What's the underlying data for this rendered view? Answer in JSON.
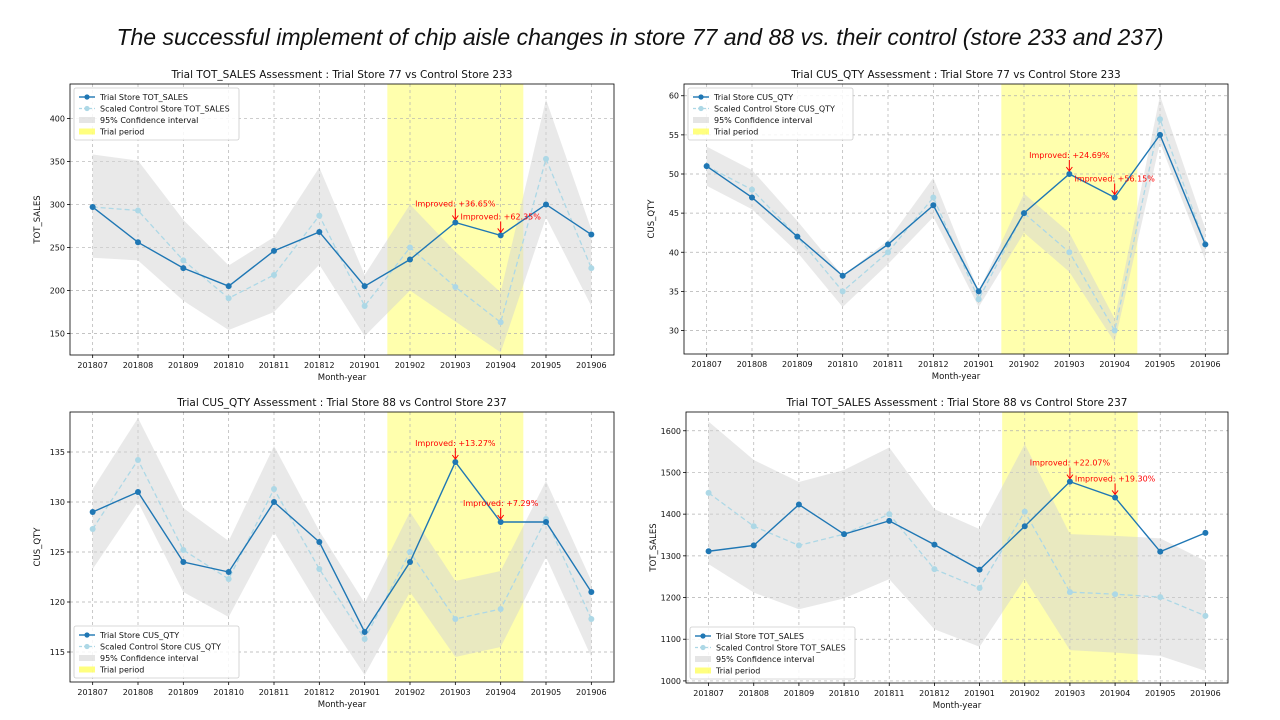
{
  "slide": {
    "title": "The successful implement of chip aisle changes in store 77 and 88 vs. their control (store 233 and 237)"
  },
  "colors": {
    "trial": "#1f77b4",
    "control": "#add8e6",
    "ci": "#d3d3d3",
    "trial_period": "#ffff00",
    "annotation": "#ff0000",
    "grid": "#b0b0b0"
  },
  "chart_data": [
    {
      "type": "line",
      "title": "Trial TOT_SALES Assessment : Trial Store 77 vs Control Store 233",
      "xlabel": "Month-year",
      "ylabel": "TOT_SALES",
      "x": [
        "201807",
        "201808",
        "201809",
        "201810",
        "201811",
        "201812",
        "201901",
        "201902",
        "201903",
        "201904",
        "201905",
        "201906"
      ],
      "ylim": [
        125,
        440
      ],
      "yticks": [
        150,
        200,
        250,
        300,
        350,
        400
      ],
      "grid": true,
      "legend_position": "top-left",
      "series": [
        {
          "name": "Trial Store TOT_SALES",
          "values": [
            297,
            256,
            226,
            205,
            246,
            268,
            205,
            236,
            279,
            264,
            300,
            265
          ]
        },
        {
          "name": "Scaled Control Store TOT_SALES",
          "values": [
            297,
            293,
            235,
            191,
            218,
            287,
            182,
            250,
            204,
            163,
            353,
            226
          ]
        }
      ],
      "ci": {
        "name": "95% Confidence interval",
        "lower": [
          238,
          235,
          188,
          154,
          175,
          230,
          147,
          200,
          164,
          128,
          285,
          182
        ],
        "upper": [
          358,
          351,
          282,
          229,
          262,
          343,
          218,
          300,
          245,
          198,
          422,
          271
        ]
      },
      "trial_period": {
        "name": "Trial period",
        "start": "201902",
        "end": "201904"
      },
      "annotations": [
        {
          "text": "Improved: +36.65%",
          "x": "201903",
          "y": 279
        },
        {
          "text": "Improved: +62.35%",
          "x": "201904",
          "y": 264
        }
      ]
    },
    {
      "type": "line",
      "title": "Trial CUS_QTY Assessment : Trial Store 77 vs Control Store 233",
      "xlabel": "Month-year",
      "ylabel": "CUS_QTY",
      "x": [
        "201807",
        "201808",
        "201809",
        "201810",
        "201811",
        "201812",
        "201901",
        "201902",
        "201903",
        "201904",
        "201905",
        "201906"
      ],
      "ylim": [
        27,
        61.5
      ],
      "yticks": [
        30,
        35,
        40,
        45,
        50,
        55,
        60
      ],
      "grid": true,
      "legend_position": "top-left",
      "series": [
        {
          "name": "Trial Store CUS_QTY",
          "values": [
            51,
            47,
            42,
            37,
            41,
            46,
            35,
            45,
            50,
            47,
            55,
            41
          ]
        },
        {
          "name": "Scaled Control Store CUS_QTY",
          "values": [
            51,
            48,
            42,
            35,
            40,
            47,
            34,
            45,
            40,
            30,
            57,
            41
          ]
        }
      ],
      "ci": {
        "name": "95% Confidence interval",
        "lower": [
          48.5,
          45.5,
          40,
          33,
          38.5,
          44.5,
          33,
          42.5,
          37.5,
          28.5,
          54,
          39
        ],
        "upper": [
          53.5,
          50.5,
          44,
          37,
          41.5,
          49.5,
          35,
          47.5,
          42.5,
          31.5,
          60,
          43
        ]
      },
      "trial_period": {
        "name": "Trial period",
        "start": "201902",
        "end": "201904"
      },
      "annotations": [
        {
          "text": "Improved: +24.69%",
          "x": "201903",
          "y": 50
        },
        {
          "text": "Improved: +56.15%",
          "x": "201904",
          "y": 47
        }
      ]
    },
    {
      "type": "line",
      "title": "Trial CUS_QTY Assessment : Trial Store 88 vs Control Store 237",
      "xlabel": "Month-year",
      "ylabel": "CUS_QTY",
      "x": [
        "201807",
        "201808",
        "201809",
        "201810",
        "201811",
        "201812",
        "201901",
        "201902",
        "201903",
        "201904",
        "201905",
        "201906"
      ],
      "ylim": [
        112,
        139
      ],
      "yticks": [
        115,
        120,
        125,
        130,
        135
      ],
      "grid": true,
      "legend_position": "bottom-left",
      "series": [
        {
          "name": "Trial Store CUS_QTY",
          "values": [
            129,
            131,
            124,
            123,
            130,
            126,
            117,
            124,
            134,
            128,
            128,
            121
          ]
        },
        {
          "name": "Scaled Control Store CUS_QTY",
          "values": [
            127.3,
            134.2,
            125.2,
            122.3,
            131.3,
            123.3,
            116.3,
            125,
            118.3,
            119.3,
            128.3,
            118.3
          ]
        }
      ],
      "ci": {
        "name": "95% Confidence interval",
        "lower": [
          123.3,
          130,
          121,
          118.5,
          127,
          119.5,
          112.7,
          121,
          114.5,
          115.5,
          124.5,
          114.5
        ],
        "upper": [
          131.3,
          138.4,
          129.4,
          126.1,
          135.6,
          127.1,
          119.9,
          129,
          122.1,
          123.1,
          132.1,
          122.1
        ]
      },
      "trial_period": {
        "name": "Trial period",
        "start": "201902",
        "end": "201904"
      },
      "annotations": [
        {
          "text": "Improved: +13.27%",
          "x": "201903",
          "y": 134
        },
        {
          "text": "Improved: +7.29%",
          "x": "201904",
          "y": 128
        }
      ]
    },
    {
      "type": "line",
      "title": "Trial TOT_SALES Assessment : Trial Store 88 vs Control Store 237",
      "xlabel": "Month-year",
      "ylabel": "TOT_SALES",
      "x": [
        "201807",
        "201808",
        "201809",
        "201810",
        "201811",
        "201812",
        "201901",
        "201902",
        "201903",
        "201904",
        "201905",
        "201906"
      ],
      "ylim": [
        995,
        1645
      ],
      "yticks": [
        1000,
        1100,
        1200,
        1300,
        1400,
        1500,
        1600
      ],
      "grid": true,
      "legend_position": "bottom-left",
      "series": [
        {
          "name": "Trial Store TOT_SALES",
          "values": [
            1311,
            1325,
            1423,
            1352,
            1384,
            1327,
            1267,
            1371,
            1478,
            1440,
            1310,
            1355
          ]
        },
        {
          "name": "Scaled Control Store TOT_SALES",
          "values": [
            1451,
            1371,
            1325,
            1352,
            1400,
            1268,
            1223,
            1406,
            1213,
            1208,
            1201,
            1156
          ]
        }
      ],
      "ci": {
        "name": "95% Confidence interval",
        "lower": [
          1280,
          1212,
          1172,
          1198,
          1244,
          1124,
          1082,
          1245,
          1074,
          1068,
          1060,
          1024
        ],
        "upper": [
          1622,
          1530,
          1477,
          1506,
          1560,
          1412,
          1364,
          1568,
          1352,
          1348,
          1342,
          1288
        ]
      },
      "trial_period": {
        "name": "Trial period",
        "start": "201902",
        "end": "201904"
      },
      "annotations": [
        {
          "text": "Improved: +22.07%",
          "x": "201903",
          "y": 1478
        },
        {
          "text": "Improved: +19.30%",
          "x": "201904",
          "y": 1440
        }
      ]
    }
  ]
}
